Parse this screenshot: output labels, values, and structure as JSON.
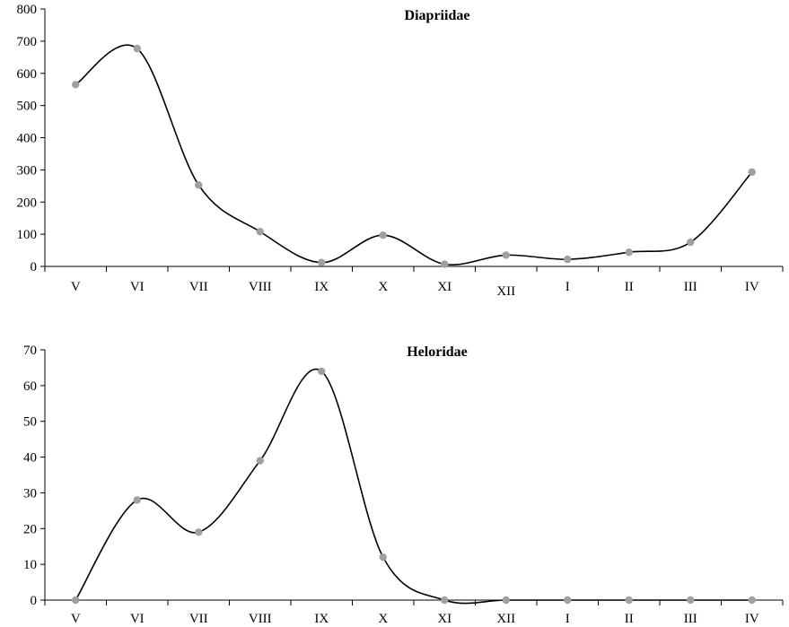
{
  "chart_data": [
    {
      "type": "line",
      "title": "Diapriidae",
      "categories": [
        "V",
        "VI",
        "VII",
        "VIII",
        "IX",
        "X",
        "XI",
        "XII",
        "I",
        "II",
        "III",
        "IV"
      ],
      "values": [
        565,
        677,
        253,
        108,
        12,
        97,
        7,
        35,
        22,
        44,
        75,
        293
      ],
      "ylim": [
        0,
        800
      ],
      "yticks": [
        0,
        100,
        200,
        300,
        400,
        500,
        600,
        700,
        800
      ],
      "xlabel": "",
      "ylabel": "",
      "grid": false,
      "line_color": "#000000",
      "marker_color": "#a0a0a0"
    },
    {
      "type": "line",
      "title": "Heloridae",
      "categories": [
        "V",
        "VI",
        "VII",
        "VIII",
        "IX",
        "X",
        "XI",
        "XII",
        "I",
        "II",
        "III",
        "IV"
      ],
      "values": [
        0,
        28,
        19,
        39,
        64,
        12,
        0,
        0,
        0,
        0,
        0,
        0
      ],
      "ylim": [
        0,
        70
      ],
      "yticks": [
        0,
        10,
        20,
        30,
        40,
        50,
        60,
        70
      ],
      "xlabel": "",
      "ylabel": "",
      "grid": false,
      "line_color": "#000000",
      "marker_color": "#a0a0a0"
    }
  ]
}
